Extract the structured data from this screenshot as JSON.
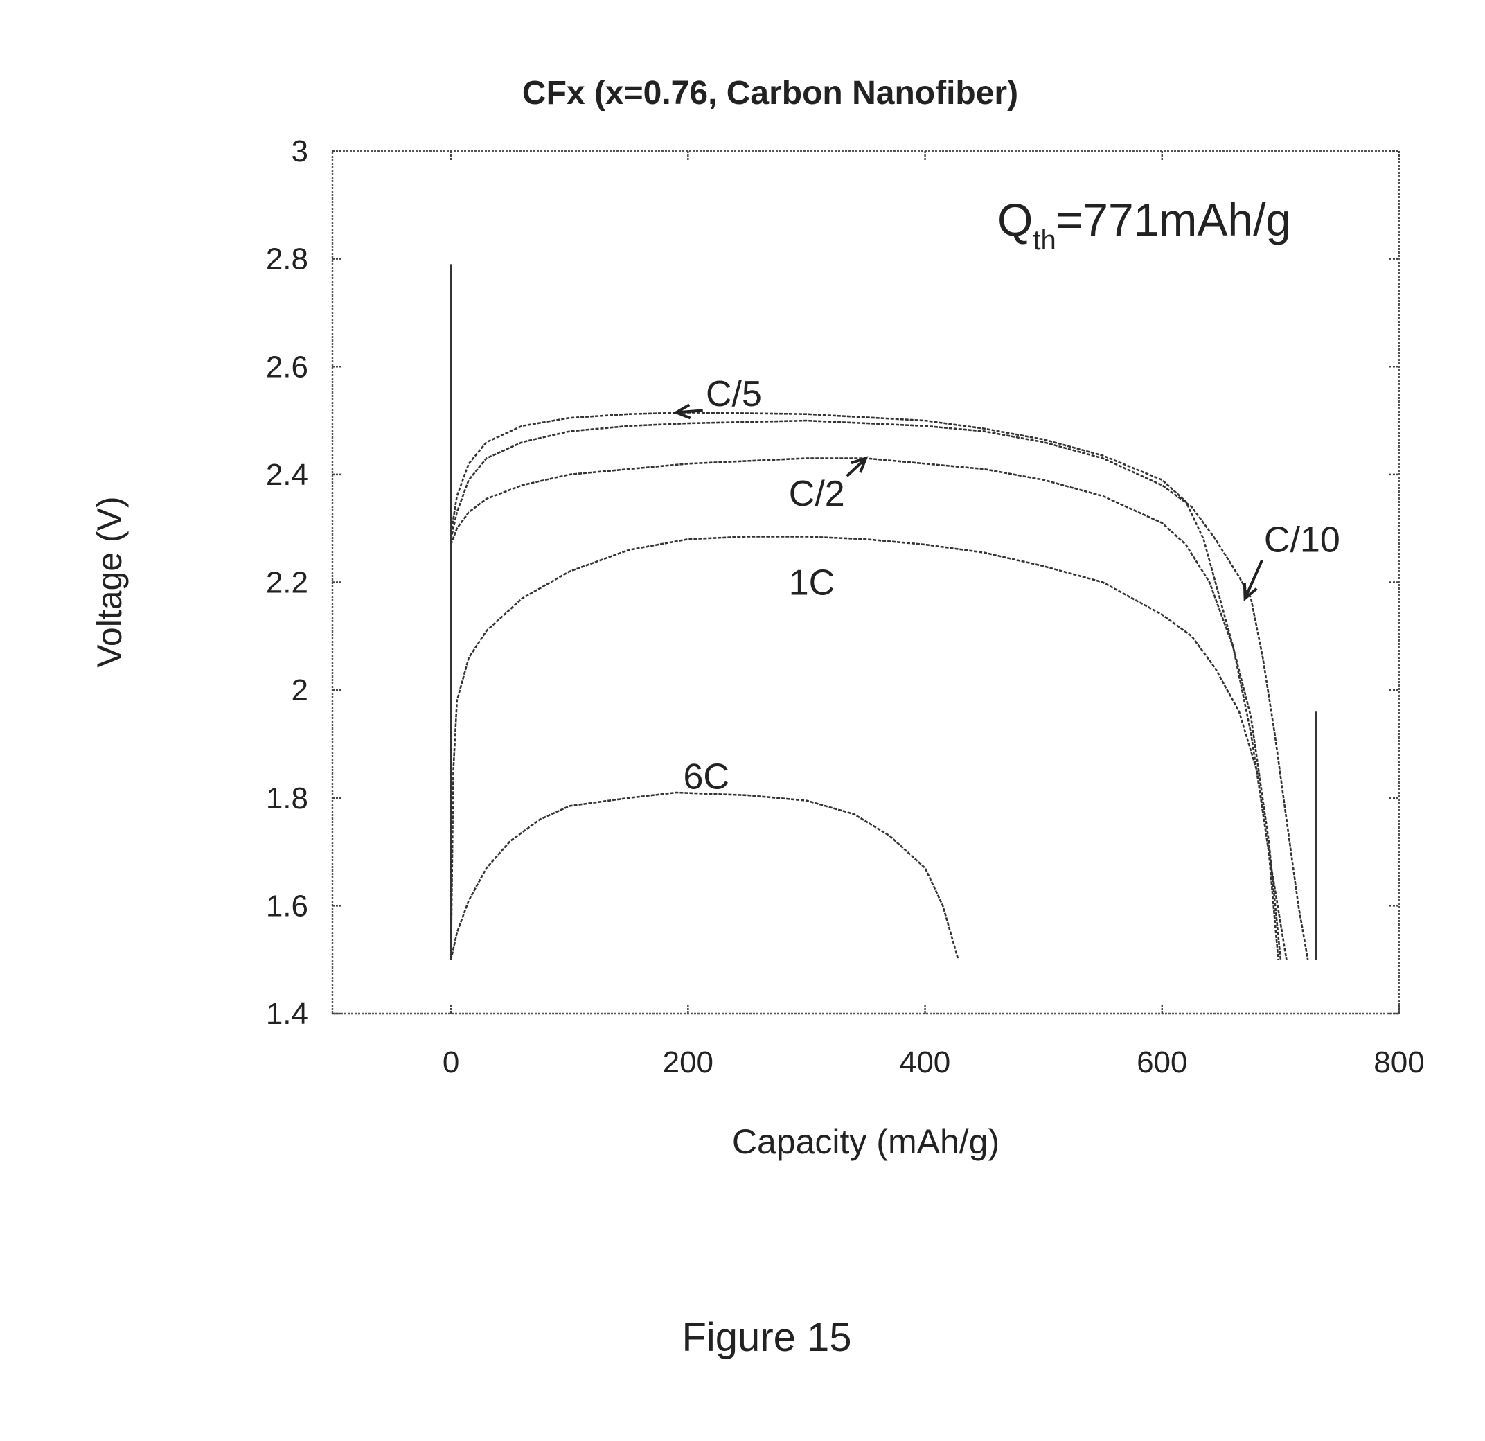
{
  "chart_data": {
    "type": "line",
    "title": "CFx (x=0.76, Carbon Nanofiber)",
    "xlabel": "Capacity (mAh/g)",
    "ylabel": "Voltage (V)",
    "xlim": [
      -100,
      800
    ],
    "ylim": [
      1.4,
      3.0
    ],
    "x_ticks": [
      0,
      200,
      400,
      600,
      800
    ],
    "y_ticks": [
      1.4,
      1.6,
      1.8,
      2.0,
      2.2,
      2.4,
      2.6,
      2.8,
      3.0
    ],
    "x_tick_labels": [
      "0",
      "200",
      "400",
      "600",
      "800"
    ],
    "y_tick_labels": [
      "1.4",
      "1.6",
      "1.8",
      "2",
      "2.2",
      "2.4",
      "2.6",
      "2.8",
      "3"
    ],
    "grid": false,
    "series": [
      {
        "name": "C/10",
        "points": [
          [
            0,
            2.28
          ],
          [
            5,
            2.33
          ],
          [
            15,
            2.39
          ],
          [
            30,
            2.43
          ],
          [
            60,
            2.46
          ],
          [
            100,
            2.48
          ],
          [
            150,
            2.49
          ],
          [
            200,
            2.495
          ],
          [
            300,
            2.5
          ],
          [
            400,
            2.49
          ],
          [
            450,
            2.48
          ],
          [
            500,
            2.46
          ],
          [
            550,
            2.43
          ],
          [
            600,
            2.38
          ],
          [
            625,
            2.34
          ],
          [
            645,
            2.28
          ],
          [
            665,
            2.21
          ],
          [
            675,
            2.17
          ],
          [
            685,
            2.06
          ],
          [
            695,
            1.92
          ],
          [
            705,
            1.76
          ],
          [
            715,
            1.6
          ],
          [
            723,
            1.5
          ]
        ]
      },
      {
        "name": "C/5",
        "points": [
          [
            0,
            2.29
          ],
          [
            5,
            2.36
          ],
          [
            15,
            2.42
          ],
          [
            30,
            2.46
          ],
          [
            60,
            2.49
          ],
          [
            100,
            2.505
          ],
          [
            150,
            2.512
          ],
          [
            200,
            2.515
          ],
          [
            300,
            2.512
          ],
          [
            400,
            2.5
          ],
          [
            450,
            2.485
          ],
          [
            500,
            2.465
          ],
          [
            550,
            2.435
          ],
          [
            600,
            2.39
          ],
          [
            620,
            2.35
          ],
          [
            635,
            2.28
          ],
          [
            645,
            2.2
          ],
          [
            660,
            2.08
          ],
          [
            675,
            1.92
          ],
          [
            690,
            1.7
          ],
          [
            705,
            1.5
          ]
        ]
      },
      {
        "name": "C/2",
        "points": [
          [
            0,
            2.27
          ],
          [
            5,
            2.3
          ],
          [
            15,
            2.33
          ],
          [
            30,
            2.355
          ],
          [
            60,
            2.38
          ],
          [
            100,
            2.4
          ],
          [
            150,
            2.41
          ],
          [
            200,
            2.42
          ],
          [
            300,
            2.43
          ],
          [
            350,
            2.43
          ],
          [
            400,
            2.42
          ],
          [
            450,
            2.41
          ],
          [
            500,
            2.39
          ],
          [
            550,
            2.36
          ],
          [
            600,
            2.31
          ],
          [
            620,
            2.27
          ],
          [
            640,
            2.2
          ],
          [
            660,
            2.08
          ],
          [
            675,
            1.95
          ],
          [
            690,
            1.72
          ],
          [
            700,
            1.5
          ]
        ]
      },
      {
        "name": "1C",
        "points": [
          [
            0,
            1.5
          ],
          [
            2,
            1.85
          ],
          [
            5,
            1.98
          ],
          [
            15,
            2.06
          ],
          [
            30,
            2.11
          ],
          [
            60,
            2.17
          ],
          [
            100,
            2.22
          ],
          [
            150,
            2.26
          ],
          [
            200,
            2.28
          ],
          [
            250,
            2.285
          ],
          [
            300,
            2.285
          ],
          [
            350,
            2.28
          ],
          [
            400,
            2.27
          ],
          [
            450,
            2.255
          ],
          [
            500,
            2.23
          ],
          [
            550,
            2.2
          ],
          [
            600,
            2.14
          ],
          [
            625,
            2.1
          ],
          [
            645,
            2.04
          ],
          [
            665,
            1.96
          ],
          [
            680,
            1.85
          ],
          [
            690,
            1.7
          ],
          [
            698,
            1.5
          ]
        ]
      },
      {
        "name": "6C",
        "points": [
          [
            0,
            1.5
          ],
          [
            5,
            1.55
          ],
          [
            15,
            1.61
          ],
          [
            30,
            1.67
          ],
          [
            50,
            1.72
          ],
          [
            75,
            1.76
          ],
          [
            100,
            1.785
          ],
          [
            150,
            1.8
          ],
          [
            190,
            1.81
          ],
          [
            250,
            1.805
          ],
          [
            300,
            1.795
          ],
          [
            340,
            1.77
          ],
          [
            370,
            1.73
          ],
          [
            400,
            1.67
          ],
          [
            415,
            1.6
          ],
          [
            428,
            1.5
          ]
        ]
      }
    ],
    "vertical_markers": [
      {
        "x": 0,
        "y_from": 1.5,
        "y_to": 2.79
      },
      {
        "x": 730,
        "y_from": 1.5,
        "y_to": 1.96
      }
    ],
    "annotations": [
      {
        "text": "C/5",
        "at": [
          215,
          2.55
        ],
        "arrow_to": [
          190,
          2.515
        ]
      },
      {
        "text": "C/2",
        "at": [
          285,
          2.365
        ],
        "arrow_to": [
          350,
          2.43
        ]
      },
      {
        "text": "1C",
        "at": [
          285,
          2.2
        ]
      },
      {
        "text": "C/10",
        "at": [
          686,
          2.28
        ],
        "arrow_to": [
          670,
          2.17
        ]
      },
      {
        "text": "6C",
        "at": [
          196,
          1.84
        ]
      }
    ],
    "inset_label": {
      "main": "Q",
      "sub": "th",
      "rest": "=771mAh/g"
    }
  },
  "caption": "Figure 15"
}
